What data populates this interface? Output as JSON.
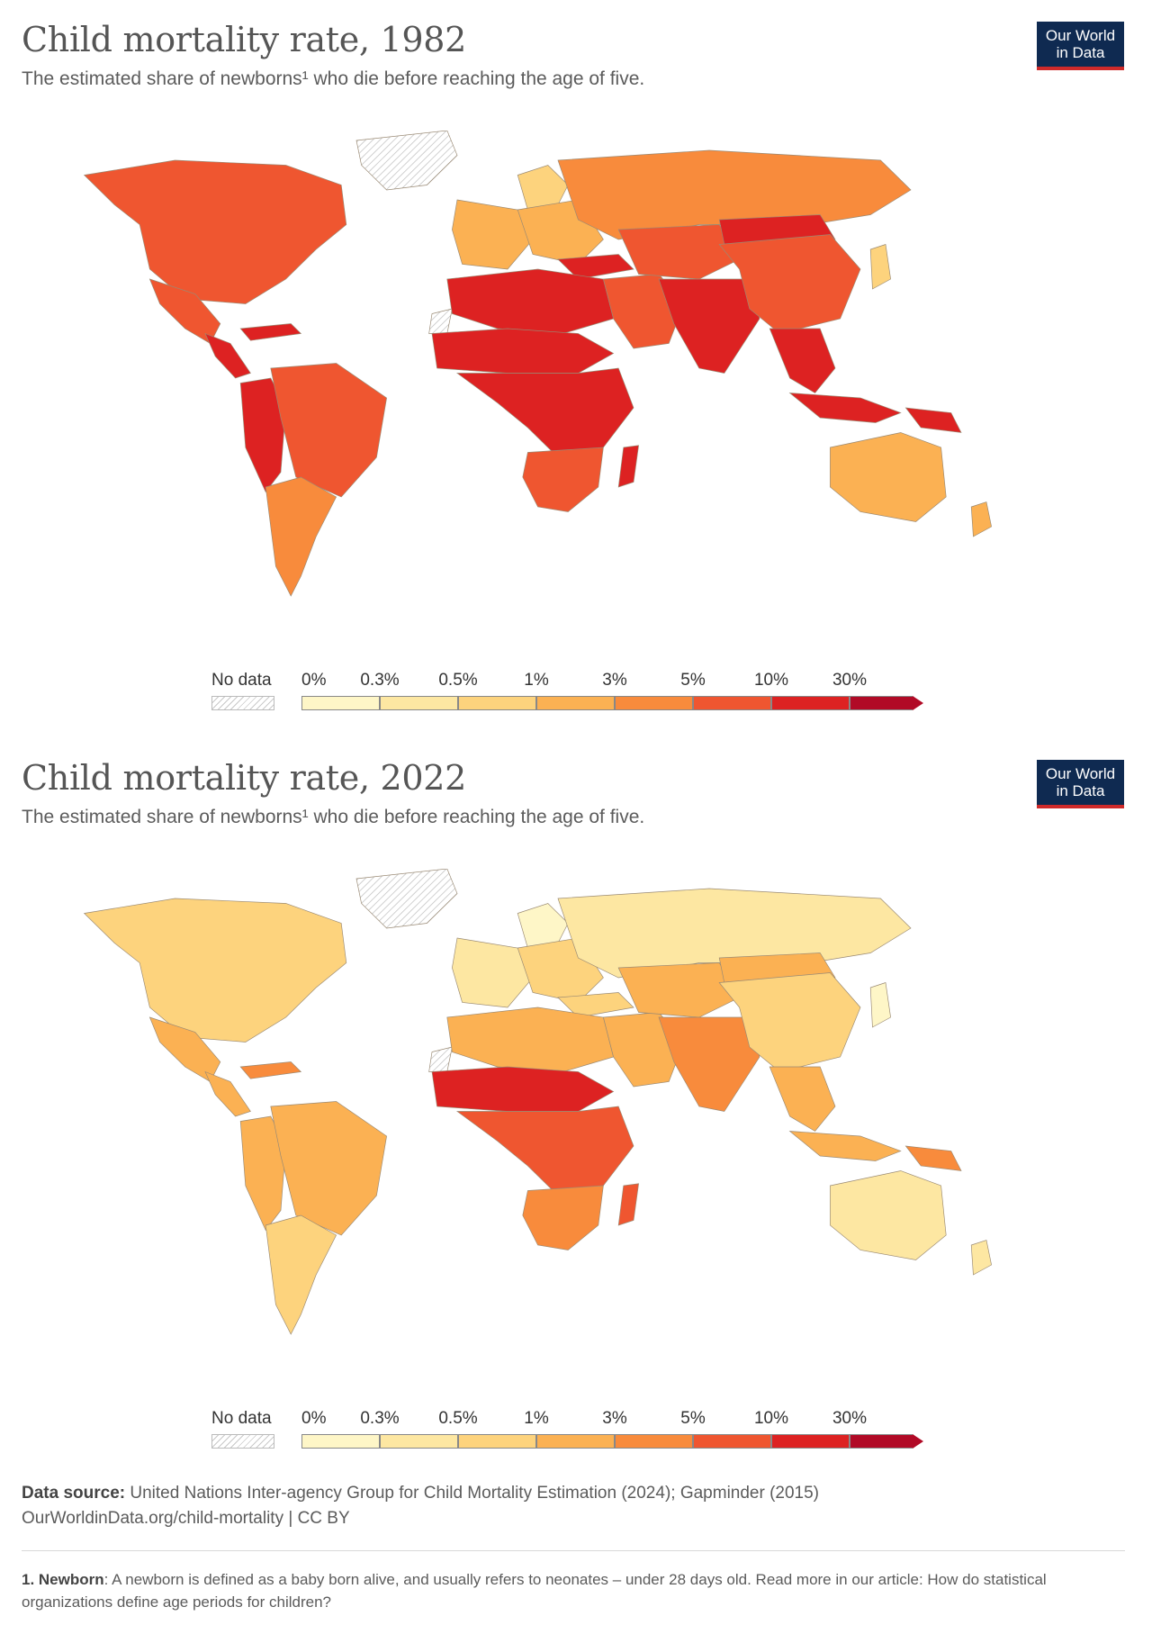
{
  "panels": [
    {
      "title": "Child mortality rate, 1982",
      "subtitle": "The estimated share of newborns¹ who die before reaching the age of five.",
      "regions": {
        "north-america": "5-10",
        "mexico": "5-10",
        "central-america": "10-30",
        "caribbean": "10-30",
        "andes": "10-30",
        "brazil": "5-10",
        "southern-cone": "3-5",
        "western-europe": "1-3",
        "eastern-europe": "1-3",
        "russia": "3-5",
        "north-africa": "10-30",
        "sahel": "10-30",
        "sub-saharan": "10-30",
        "southern-africa": "5-10",
        "madagascar": "10-30",
        "middle-east": "5-10",
        "turkey": "10-30",
        "central-asia": "5-10",
        "south-asia": "10-30",
        "mongolia": "10-30",
        "china": "5-10",
        "southeast-asia": "10-30",
        "indonesia": "10-30",
        "papua": "10-30",
        "japan": "0.5-1",
        "australia": "1-3",
        "new-zealand": "1-3",
        "scandinavia": "0.5-1",
        "greenland": "no-data",
        "west-sahara": "no-data"
      }
    },
    {
      "title": "Child mortality rate, 2022",
      "subtitle": "The estimated share of newborns¹ who die before reaching the age of five.",
      "regions": {
        "north-america": "0.5-1",
        "mexico": "1-3",
        "central-america": "1-3",
        "caribbean": "3-5",
        "andes": "1-3",
        "brazil": "1-3",
        "southern-cone": "0.5-1",
        "western-europe": "0.3-0.5",
        "eastern-europe": "0.5-1",
        "russia": "0.3-0.5",
        "north-africa": "1-3",
        "sahel": "10-30",
        "sub-saharan": "5-10",
        "southern-africa": "3-5",
        "madagascar": "5-10",
        "middle-east": "1-3",
        "turkey": "0.5-1",
        "central-asia": "1-3",
        "south-asia": "3-5",
        "mongolia": "1-3",
        "china": "0.5-1",
        "southeast-asia": "1-3",
        "indonesia": "1-3",
        "papua": "3-5",
        "japan": "0-0.3",
        "australia": "0.3-0.5",
        "new-zealand": "0.3-0.5",
        "scandinavia": "0-0.3",
        "greenland": "no-data",
        "west-sahara": "no-data"
      }
    }
  ],
  "logo": {
    "line1": "Our World",
    "line2": "in Data"
  },
  "legend": {
    "no_data_label": "No data",
    "ticks": [
      "0%",
      "0.3%",
      "0.5%",
      "1%",
      "3%",
      "5%",
      "10%",
      "30%"
    ],
    "bins": [
      {
        "key": "0-0.3",
        "color": "#fef6c7"
      },
      {
        "key": "0.3-0.5",
        "color": "#fde7a2"
      },
      {
        "key": "0.5-1",
        "color": "#fdd37d"
      },
      {
        "key": "1-3",
        "color": "#fbb153"
      },
      {
        "key": "3-5",
        "color": "#f88b3c"
      },
      {
        "key": "5-10",
        "color": "#ef5630"
      },
      {
        "key": "10-30",
        "color": "#dd2222"
      },
      {
        "key": "30+",
        "color": "#b10a26"
      }
    ]
  },
  "footer": {
    "source_label": "Data source:",
    "source_text": "United Nations Inter-agency Group for Child Mortality Estimation (2024); Gapminder (2015)",
    "url_line": "OurWorldinData.org/child-mortality | CC BY",
    "note_label": "1. Newborn",
    "note_text": ": A newborn is defined as a baby born alive, and usually refers to neonates – under 28 days old. Read more in our article: How do statistical organizations define age periods for children?"
  }
}
